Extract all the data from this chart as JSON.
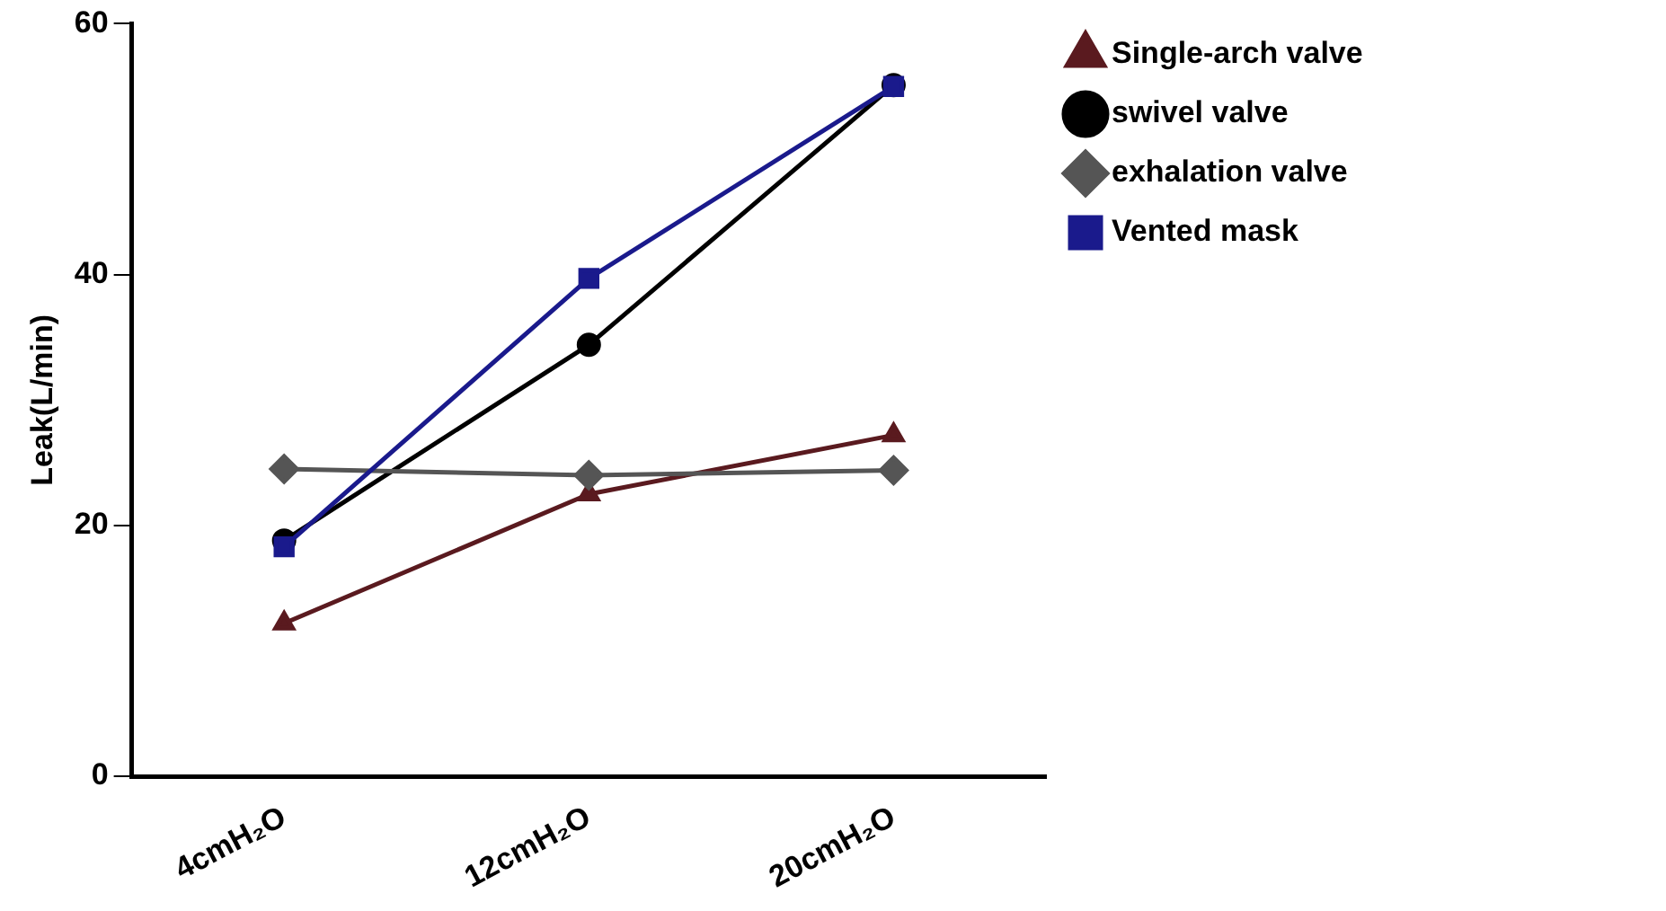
{
  "chart_data": {
    "type": "line",
    "ylabel": "Leak(L/min)",
    "categories": [
      "4cmH₂O",
      "12cmH₂O",
      "20cmH₂O"
    ],
    "ylim": [
      0,
      60
    ],
    "yticks": [
      0,
      20,
      40,
      60
    ],
    "grid": false,
    "legend": "top right",
    "series": [
      {
        "name": "Single-arch valve",
        "color": "#5a1a1f",
        "marker": "triangle",
        "values": [
          12.2,
          22.5,
          27.2
        ]
      },
      {
        "name": "swivel valve",
        "color": "#000000",
        "marker": "circle",
        "values": [
          18.8,
          34.4,
          55.1
        ]
      },
      {
        "name": "exhalation valve",
        "color": "#555555",
        "marker": "diamond",
        "values": [
          24.5,
          24.0,
          24.4
        ]
      },
      {
        "name": "Vented mask",
        "color": "#1a1a8c",
        "marker": "square",
        "values": [
          18.3,
          39.7,
          55.0
        ]
      }
    ]
  }
}
